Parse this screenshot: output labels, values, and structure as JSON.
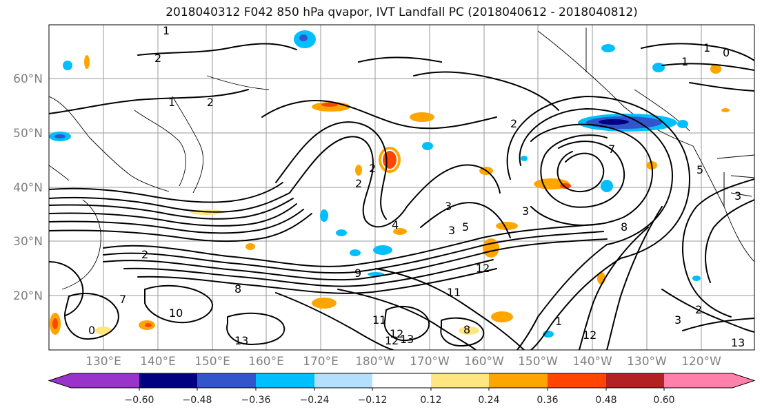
{
  "title": "2018040312 F042 850 hPa qvapor, IVT Landfall PC (2018040612 - 2018040812)",
  "map": {
    "lat_labels": [
      "60°N",
      "50°N",
      "40°N",
      "30°N",
      "20°N"
    ],
    "lon_labels": [
      "130°E",
      "140°E",
      "150°E",
      "160°E",
      "170°E",
      "180°W",
      "170°W",
      "160°W",
      "150°W",
      "140°W",
      "130°W",
      "120°W"
    ],
    "contour_labels": [
      "1",
      "2",
      "1",
      "2",
      "1",
      "0",
      "1",
      "2",
      "2",
      "2",
      "3",
      "4",
      "5",
      "3",
      "7",
      "5",
      "3",
      "8",
      "12",
      "11",
      "10",
      "13",
      "13",
      "12",
      "8",
      "7",
      "3",
      "2",
      "12",
      "9",
      "8",
      "3",
      "1",
      "0",
      "11",
      "12",
      "13",
      "2"
    ]
  },
  "colorbar": {
    "colors": [
      "#9933cc",
      "#000080",
      "#3355cc",
      "#00bfff",
      "#b3e0ff",
      "#ffffff",
      "#ffe680",
      "#ffa500",
      "#ff4500",
      "#b22222",
      "#ff80aa"
    ],
    "tick_labels": [
      "−0.60",
      "−0.48",
      "−0.36",
      "−0.24",
      "−0.12",
      "0.12",
      "0.24",
      "0.36",
      "0.48",
      "0.60"
    ]
  }
}
